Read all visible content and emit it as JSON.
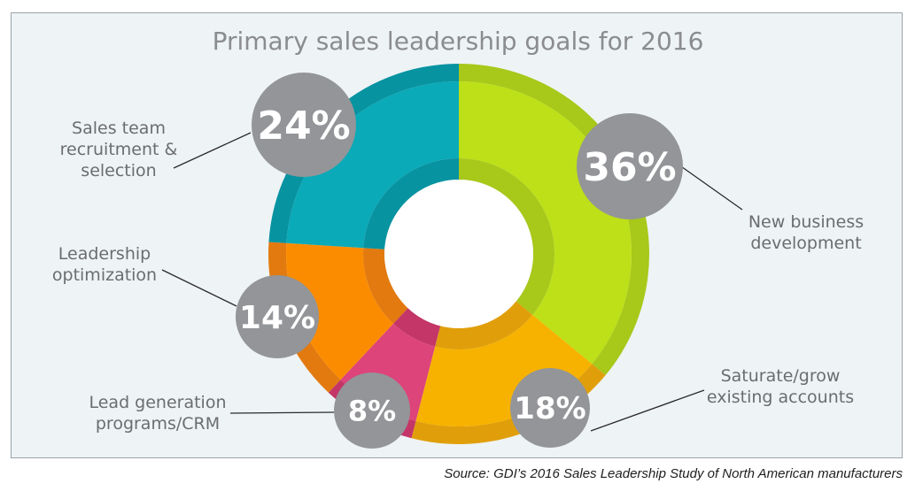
{
  "chart_data": {
    "type": "pie",
    "variant": "donut",
    "title": "Primary sales leadership goals for 2016",
    "slices": [
      {
        "label": [
          "New business",
          "development"
        ],
        "value": 36,
        "display": "36%",
        "color": "#bde018",
        "shade": "#a8c81a"
      },
      {
        "label": [
          "Saturate/grow",
          "existing accounts"
        ],
        "value": 18,
        "display": "18%",
        "color": "#f7b200",
        "shade": "#e09f0a"
      },
      {
        "label": [
          "Lead generation",
          "programs/CRM"
        ],
        "value": 8,
        "display": "8%",
        "color": "#dd447a",
        "shade": "#c43667"
      },
      {
        "label": [
          "Leadership",
          "optimization"
        ],
        "value": 14,
        "display": "14%",
        "color": "#fb8c00",
        "shade": "#e27a10"
      },
      {
        "label": [
          "Sales team",
          "recruitment &",
          "selection"
        ],
        "value": 24,
        "display": "24%",
        "color": "#0aaab8",
        "shade": "#0893a1"
      }
    ],
    "badge_color": "#939598",
    "source": "Source: GDI’s 2016 Sales Leadership Study of North American manufacturers"
  }
}
